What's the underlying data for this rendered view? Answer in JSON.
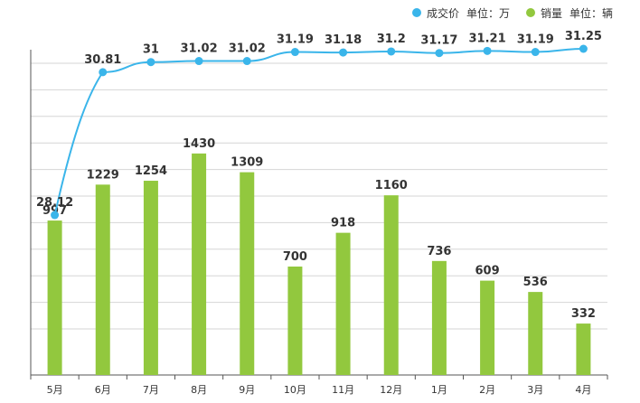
{
  "legend": {
    "price_label": "成交价",
    "price_unit": "单位：万",
    "sales_label": "销量",
    "sales_unit": "单位：辆"
  },
  "colors": {
    "price": "#3ab5ea",
    "sales": "#92c83e",
    "grid": "#d6d6d6",
    "axis": "#555555"
  },
  "chart_data": {
    "type": "bar",
    "categories": [
      "5月",
      "6月",
      "7月",
      "8月",
      "9月",
      "10月",
      "11月",
      "12月",
      "1月",
      "2月",
      "3月",
      "4月"
    ],
    "series": [
      {
        "name": "成交价",
        "unit": "单位：万",
        "type": "line",
        "values": [
          28.12,
          30.81,
          31,
          31.02,
          31.02,
          31.19,
          31.18,
          31.2,
          31.17,
          31.21,
          31.19,
          31.25
        ]
      },
      {
        "name": "销量",
        "unit": "单位：辆",
        "type": "bar",
        "values": [
          997,
          1229,
          1254,
          1430,
          1309,
          700,
          918,
          1160,
          736,
          609,
          536,
          332
        ]
      }
    ],
    "price_labels": [
      "28.12",
      "30.81",
      "31",
      "31.02",
      "31.02",
      "31.19",
      "31.18",
      "31.2",
      "31.17",
      "31.21",
      "31.19",
      "31.25"
    ],
    "sales_labels": [
      "997",
      "1229",
      "1254",
      "1430",
      "1309",
      "700",
      "918",
      "1160",
      "736",
      "609",
      "536",
      "332"
    ],
    "grid": true,
    "legend_position": "top-right"
  }
}
